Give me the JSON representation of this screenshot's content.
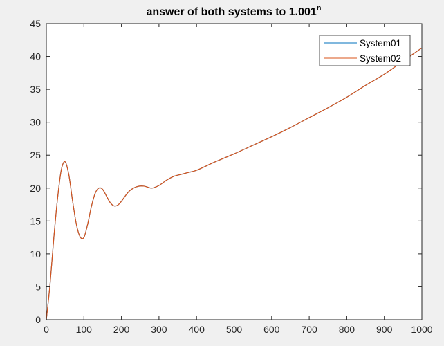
{
  "figure": {
    "background": "#f0f0f0",
    "axes_background": "#ffffff"
  },
  "chart_data": {
    "type": "line",
    "title": "answer of both systems to 1.001",
    "title_superscript": "n",
    "xlabel": "",
    "ylabel": "",
    "xlim": [
      0,
      1000
    ],
    "ylim": [
      0,
      45
    ],
    "x_ticks": [
      0,
      100,
      200,
      300,
      400,
      500,
      600,
      700,
      800,
      900,
      1000
    ],
    "y_ticks": [
      0,
      5,
      10,
      15,
      20,
      25,
      30,
      35,
      40,
      45
    ],
    "grid": false,
    "legend_position": "top-right",
    "series": [
      {
        "name": "System01",
        "color": "#0072bd",
        "x": [
          0,
          10,
          20,
          30,
          40,
          50,
          60,
          70,
          80,
          90,
          100,
          110,
          120,
          130,
          140,
          150,
          160,
          170,
          180,
          190,
          200,
          220,
          240,
          260,
          280,
          300,
          320,
          340,
          360,
          380,
          400,
          450,
          500,
          550,
          600,
          650,
          700,
          750,
          800,
          850,
          900,
          950,
          1000
        ],
        "y": [
          0,
          5.5,
          12.5,
          18.5,
          22.8,
          24.0,
          22.0,
          18.0,
          14.5,
          12.6,
          12.5,
          14.5,
          17.2,
          19.2,
          20.0,
          19.8,
          18.8,
          17.8,
          17.3,
          17.4,
          18.0,
          19.5,
          20.2,
          20.3,
          20.0,
          20.4,
          21.2,
          21.8,
          22.1,
          22.4,
          22.7,
          24.0,
          25.2,
          26.5,
          27.8,
          29.2,
          30.7,
          32.2,
          33.8,
          35.6,
          37.3,
          39.3,
          41.3
        ]
      },
      {
        "name": "System02",
        "color": "#d95319",
        "x": [
          0,
          10,
          20,
          30,
          40,
          50,
          60,
          70,
          80,
          90,
          100,
          110,
          120,
          130,
          140,
          150,
          160,
          170,
          180,
          190,
          200,
          220,
          240,
          260,
          280,
          300,
          320,
          340,
          360,
          380,
          400,
          450,
          500,
          550,
          600,
          650,
          700,
          750,
          800,
          850,
          900,
          950,
          1000
        ],
        "y": [
          0,
          5.5,
          12.5,
          18.5,
          22.8,
          24.0,
          22.0,
          18.0,
          14.5,
          12.6,
          12.5,
          14.5,
          17.2,
          19.2,
          20.0,
          19.8,
          18.8,
          17.8,
          17.3,
          17.4,
          18.0,
          19.5,
          20.2,
          20.3,
          20.0,
          20.4,
          21.2,
          21.8,
          22.1,
          22.4,
          22.7,
          24.0,
          25.2,
          26.5,
          27.8,
          29.2,
          30.7,
          32.2,
          33.8,
          35.6,
          37.3,
          39.3,
          41.3
        ]
      }
    ]
  }
}
